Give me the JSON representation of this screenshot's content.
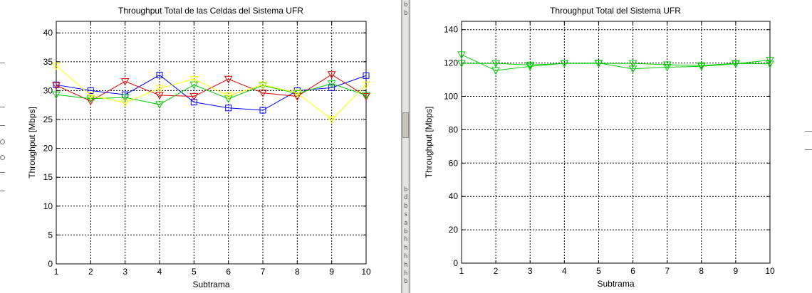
{
  "chart_data": [
    {
      "type": "line",
      "title": "Throughput Total de las Celdas del Sistema UFR",
      "xlabel": "Subtrama",
      "ylabel": "Throughput [Mbps]",
      "xlim": [
        1,
        10
      ],
      "ylim": [
        0,
        42
      ],
      "xticks": [
        1,
        2,
        3,
        4,
        5,
        6,
        7,
        8,
        9,
        10
      ],
      "yticks": [
        0,
        5,
        10,
        15,
        20,
        25,
        30,
        35,
        40
      ],
      "grid": true,
      "x": [
        1,
        2,
        3,
        4,
        5,
        6,
        7,
        8,
        9,
        10
      ],
      "series": [
        {
          "color": "#0000ff",
          "marker": "square",
          "values": [
            31.0,
            30.0,
            29.3,
            32.7,
            28.0,
            27.0,
            26.6,
            30.0,
            30.5,
            32.6
          ]
        },
        {
          "color": "#dd0000",
          "marker": "triangle-down",
          "values": [
            30.9,
            28.2,
            31.6,
            29.2,
            29.0,
            32.0,
            29.6,
            29.0,
            32.8,
            29.0
          ]
        },
        {
          "color": "#00cc00",
          "marker": "triangle-down",
          "values": [
            29.3,
            28.6,
            28.8,
            27.6,
            31.0,
            28.6,
            30.9,
            29.5,
            31.2,
            29.2
          ]
        },
        {
          "color": "#ffff00",
          "marker": "triangle-down",
          "values": [
            34.3,
            29.2,
            27.9,
            30.4,
            32.0,
            29.1,
            31.0,
            29.6,
            25.0,
            31.0
          ]
        }
      ]
    },
    {
      "type": "line",
      "title": "Throughput Total del Sistema UFR",
      "xlabel": "Subtrama",
      "ylabel": "Throughput [Mbps]",
      "xlim": [
        1,
        10
      ],
      "ylim": [
        0,
        145
      ],
      "xticks": [
        1,
        2,
        3,
        4,
        5,
        6,
        7,
        8,
        9,
        10
      ],
      "yticks": [
        0,
        20,
        40,
        60,
        80,
        100,
        120,
        140
      ],
      "grid": true,
      "x": [
        1,
        2,
        3,
        4,
        5,
        6,
        7,
        8,
        9,
        10
      ],
      "series": [
        {
          "color": "#00cc00",
          "marker": "triangle-down",
          "values": [
            125.0,
            115.5,
            118.0,
            119.8,
            120.0,
            116.5,
            117.5,
            118.0,
            119.5,
            121.8
          ]
        },
        {
          "color": "#00cc00",
          "marker": "triangle-down",
          "values": [
            119.8,
            119.8,
            118.8,
            119.8,
            119.8,
            119.8,
            119.0,
            118.5,
            119.8,
            119.5
          ]
        }
      ]
    }
  ]
}
